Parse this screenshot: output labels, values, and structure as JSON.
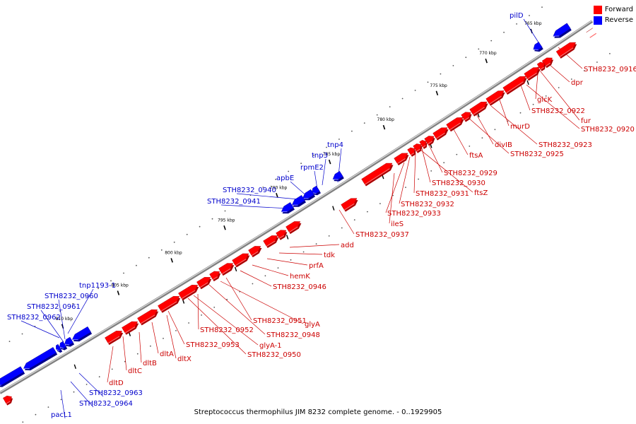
{
  "caption": "Streptococcus thermophilus JIM 8232 complete genome. - 0..1929905",
  "legend": {
    "forward_label": "Forward",
    "reverse_label": "Reverse",
    "forward_color": "#ff0000",
    "reverse_color": "#0000ff"
  },
  "colors": {
    "forward_label_text": "#cc0000",
    "reverse_label_text": "#0000cc",
    "backbone": "#808080"
  },
  "kbp_labels": [
    "765 kbp",
    "770 kbp",
    "775 kbp",
    "780 kbp",
    "785 kbp",
    "790 kbp",
    "795 kbp",
    "800 kbp",
    "805 kbp",
    "810 kbp"
  ],
  "forward_gene_labels": [
    "STH8232_0916",
    "dpr",
    "glcK",
    "fur",
    "STH8232_0922",
    "STH8232_0920",
    "murD",
    "STH8232_0923",
    "divIB",
    "STH8232_0925",
    "ftsA",
    "STH8232_0929",
    "STH8232_0930",
    "ftsZ",
    "STH8232_0931",
    "STH8232_0932",
    "STH8232_0933",
    "ileS",
    "STH8232_0937",
    "add",
    "tdk",
    "prfA",
    "hemK",
    "STH8232_0946",
    "STH8232_0951",
    "glyA",
    "STH8232_0948",
    "STH8232_0952",
    "glyA-1",
    "STH8232_0953",
    "STH8232_0950",
    "dltX",
    "dltA",
    "dltB",
    "dltC",
    "dltD"
  ],
  "reverse_gene_labels": [
    "pilD",
    "tnp4",
    "tnp3",
    "rpmE2",
    "apbE",
    "STH8232_0940",
    "STH8232_0941",
    "tnp1193-1",
    "STH8232_0960",
    "STH8232_0961",
    "STH8232_0962",
    "STH8232_0963",
    "STH8232_0964",
    "pacL1"
  ]
}
